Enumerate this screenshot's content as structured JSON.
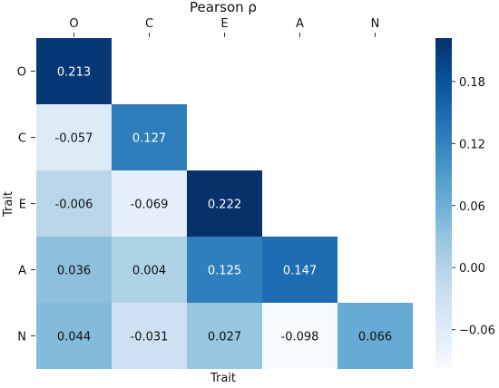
{
  "chart_data": {
    "type": "heatmap",
    "title": "Pearson ρ",
    "xlabel": "Trait",
    "ylabel": "Trait",
    "x_categories": [
      "O",
      "C",
      "E",
      "A",
      "N"
    ],
    "y_categories": [
      "O",
      "C",
      "E",
      "A",
      "N"
    ],
    "mask": "upper-triangle",
    "values": [
      [
        0.213,
        null,
        null,
        null,
        null
      ],
      [
        -0.057,
        0.127,
        null,
        null,
        null
      ],
      [
        -0.006,
        -0.069,
        0.222,
        null,
        null
      ],
      [
        0.036,
        0.004,
        0.125,
        0.147,
        null
      ],
      [
        0.044,
        -0.031,
        0.027,
        -0.098,
        0.066
      ]
    ],
    "labels": [
      [
        "0.213",
        "",
        "",
        "",
        ""
      ],
      [
        "-0.057",
        "0.127",
        "",
        "",
        ""
      ],
      [
        "-0.006",
        "-0.069",
        "0.222",
        "",
        ""
      ],
      [
        "0.036",
        "0.004",
        "0.125",
        "0.147",
        ""
      ],
      [
        "0.044",
        "-0.031",
        "0.027",
        "-0.098",
        "0.066"
      ]
    ],
    "colormap": "Blues",
    "colorbar": {
      "vmin": -0.098,
      "vmax": 0.222,
      "ticks": [
        -0.06,
        0.0,
        0.06,
        0.12,
        0.18
      ],
      "tick_labels": [
        "−0.06",
        "0.00",
        "0.06",
        "0.12",
        "0.18"
      ]
    },
    "grid": false,
    "legend": "colorbar-right"
  }
}
